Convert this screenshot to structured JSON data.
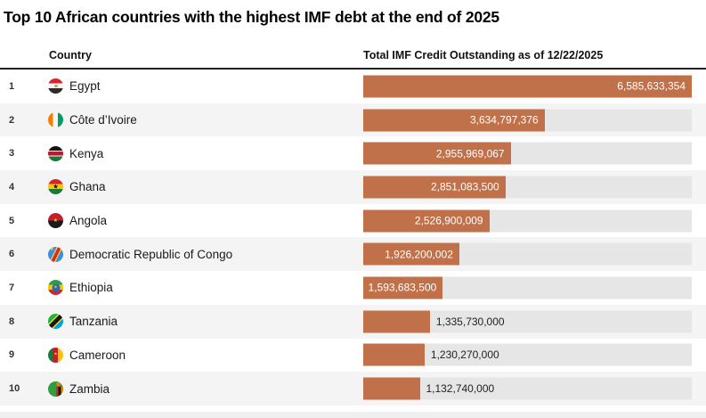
{
  "title": "Top 10 African countries with the highest IMF debt at the end of 2025",
  "table": {
    "columns": {
      "country": "Country",
      "value": "Total IMF Credit Outstanding as of 12/22/2025"
    },
    "rows": [
      {
        "rank": "1",
        "flag": "egypt",
        "country": "Egypt",
        "value": 6585633354,
        "value_label": "6,585,633,354"
      },
      {
        "rank": "2",
        "flag": "cote-divoire",
        "country": "Côte d’Ivoire",
        "value": 3634797376,
        "value_label": "3,634,797,376"
      },
      {
        "rank": "3",
        "flag": "kenya",
        "country": "Kenya",
        "value": 2955969067,
        "value_label": "2,955,969,067"
      },
      {
        "rank": "4",
        "flag": "ghana",
        "country": "Ghana",
        "value": 2851083500,
        "value_label": "2,851,083,500"
      },
      {
        "rank": "5",
        "flag": "angola",
        "country": "Angola",
        "value": 2526900009,
        "value_label": "2,526,900,009"
      },
      {
        "rank": "6",
        "flag": "drc",
        "country": "Democratic Republic of Congo",
        "value": 1926200002,
        "value_label": "1,926,200,002"
      },
      {
        "rank": "7",
        "flag": "ethiopia",
        "country": "Ethiopia",
        "value": 1593683500,
        "value_label": "1,593,683,500"
      },
      {
        "rank": "8",
        "flag": "tanzania",
        "country": "Tanzania",
        "value": 1335730000,
        "value_label": "1,335,730,000"
      },
      {
        "rank": "9",
        "flag": "cameroon",
        "country": "Cameroon",
        "value": 1230270000,
        "value_label": "1,230,270,000"
      },
      {
        "rank": "10",
        "flag": "zambia",
        "country": "Zambia",
        "value": 1132740000,
        "value_label": "1,132,740,000"
      }
    ]
  },
  "colors": {
    "bar": "#c1714a",
    "track": "#e6e6e6",
    "row_alt": "#f4f4f4",
    "header_rule": "#222222",
    "value_inside": "#ffffff",
    "value_outside": "#222222"
  },
  "chart_data": {
    "type": "bar",
    "orientation": "horizontal",
    "title": "Top 10 African countries with the highest IMF debt at the end of 2025",
    "xlabel": "Total IMF Credit Outstanding as of 12/22/2025",
    "ylabel": "Country",
    "xlim": [
      0,
      6585633354
    ],
    "grid": false,
    "legend": false,
    "categories": [
      "Egypt",
      "Côte d’Ivoire",
      "Kenya",
      "Ghana",
      "Angola",
      "Democratic Republic of Congo",
      "Ethiopia",
      "Tanzania",
      "Cameroon",
      "Zambia"
    ],
    "values": [
      6585633354,
      3634797376,
      2955969067,
      2851083500,
      2526900009,
      1926200002,
      1593683500,
      1335730000,
      1230270000,
      1132740000
    ],
    "value_labels": [
      "6,585,633,354",
      "3,634,797,376",
      "2,955,969,067",
      "2,851,083,500",
      "2,526,900,009",
      "1,926,200,002",
      "1,593,683,500",
      "1,335,730,000",
      "1,230,270,000",
      "1,132,740,000"
    ]
  }
}
